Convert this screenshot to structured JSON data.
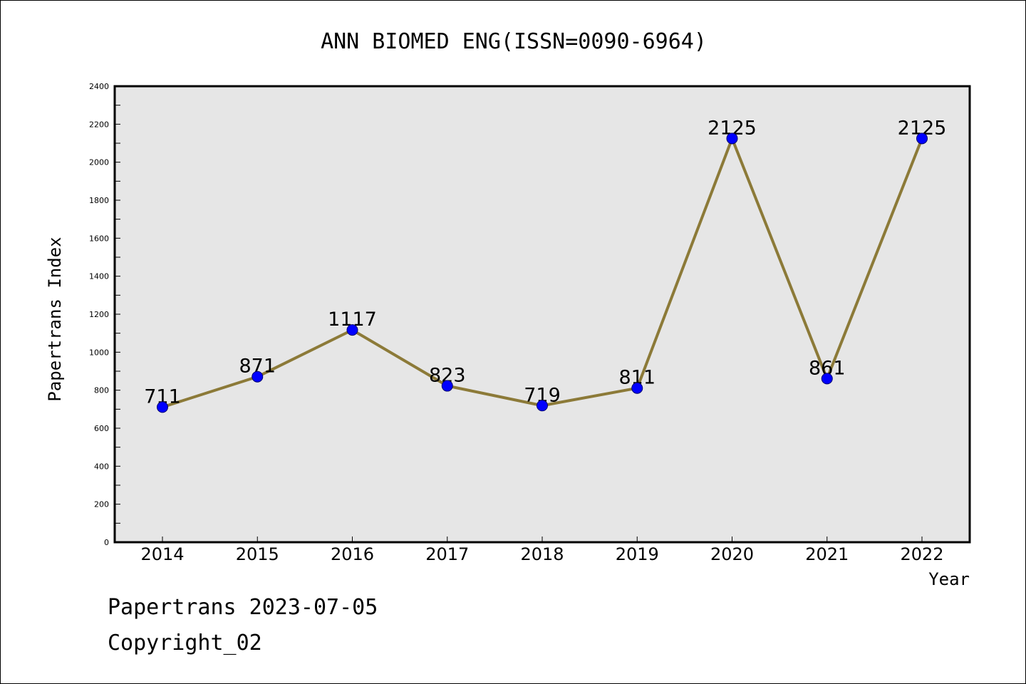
{
  "chart_data": {
    "type": "line",
    "title": "ANN BIOMED ENG(ISSN=0090-6964)",
    "xlabel": "Year",
    "ylabel": "Papertrans Index",
    "categories": [
      "2014",
      "2015",
      "2016",
      "2017",
      "2018",
      "2019",
      "2020",
      "2021",
      "2022"
    ],
    "series": [
      {
        "values": [
          711,
          871,
          1117,
          823,
          719,
          811,
          2125,
          861,
          2125
        ]
      }
    ],
    "data_labels": [
      "711",
      "871",
      "1117",
      "823",
      "719",
      "811",
      "2125",
      "861",
      "2125"
    ],
    "ylim": [
      0,
      2400
    ],
    "yticks": [
      0,
      200,
      400,
      600,
      800,
      1000,
      1200,
      1400,
      1600,
      1800,
      2000,
      2200,
      2400
    ],
    "ytick_labels": [
      "0",
      "200",
      "400",
      "600",
      "800",
      "1000",
      "1200",
      "1400",
      "1600",
      "1800",
      "2000",
      "2200",
      "2400"
    ],
    "grid": false,
    "colors": {
      "line": "#8c7a38",
      "marker": "#0000ff",
      "plot_background": "#e6e6e6"
    }
  },
  "footer": {
    "line1": "Papertrans 2023-07-05",
    "line2": "Copyright_02"
  }
}
